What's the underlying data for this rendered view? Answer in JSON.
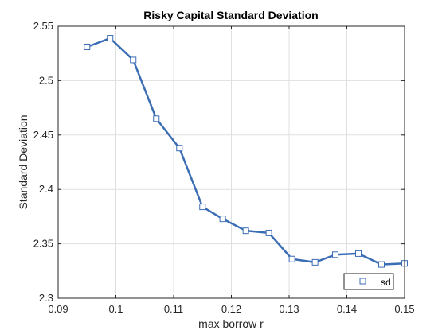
{
  "chart_data": {
    "type": "line",
    "title": "Risky Capital Standard Deviation",
    "xlabel": "max borrow r",
    "ylabel": "Standard Deviation",
    "xlim": [
      0.09,
      0.15
    ],
    "ylim": [
      2.3,
      2.55
    ],
    "x_ticks": [
      0.09,
      0.1,
      0.11,
      0.12,
      0.13,
      0.14,
      0.15
    ],
    "y_ticks": [
      2.3,
      2.35,
      2.4,
      2.45,
      2.5,
      2.55
    ],
    "x_tick_labels": [
      "0.09",
      "0.1",
      "0.11",
      "0.12",
      "0.13",
      "0.14",
      "0.15"
    ],
    "y_tick_labels": [
      "2.3",
      "2.35",
      "2.4",
      "2.45",
      "2.5",
      "2.55"
    ],
    "grid": true,
    "legend_position": "bottom-right",
    "series": [
      {
        "name": "sd",
        "color": "#3b6db5",
        "marker": "square",
        "x": [
          0.095,
          0.099,
          0.103,
          0.107,
          0.111,
          0.115,
          0.1185,
          0.1225,
          0.1265,
          0.1305,
          0.1345,
          0.138,
          0.142,
          0.146,
          0.15
        ],
        "y": [
          2.531,
          2.539,
          2.519,
          2.465,
          2.438,
          2.384,
          2.373,
          2.362,
          2.36,
          2.336,
          2.333,
          2.34,
          2.341,
          2.331,
          2.332
        ]
      }
    ]
  }
}
